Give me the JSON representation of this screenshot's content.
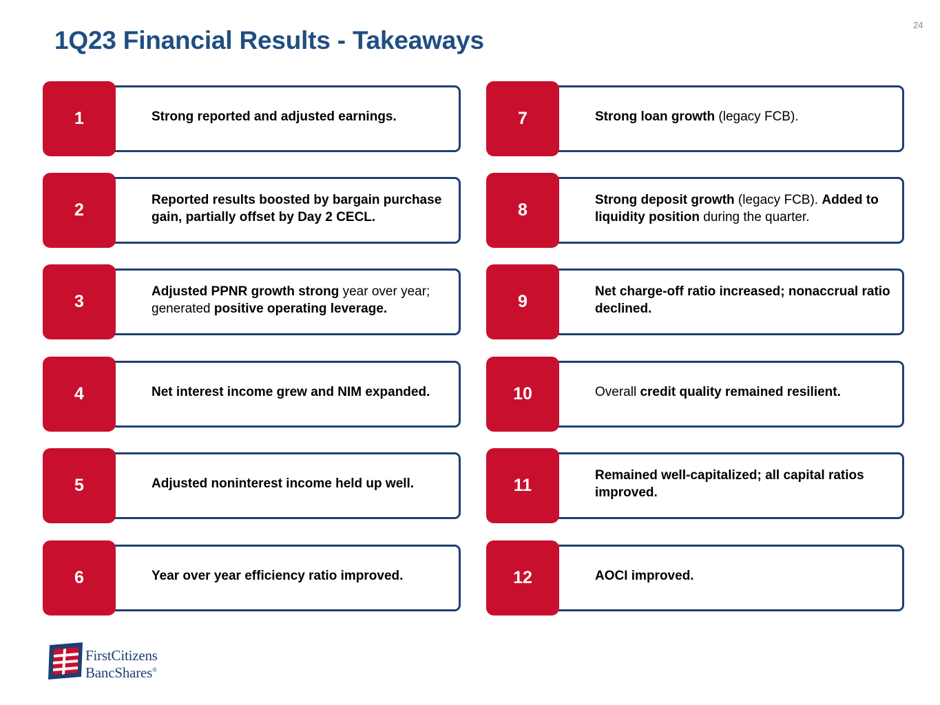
{
  "page_number": "24",
  "title": "1Q23 Financial Results - Takeaways",
  "colors": {
    "title": "#1f4e82",
    "number_badge": "#c8102e",
    "card_border": "#1f3f73"
  },
  "takeaways": [
    {
      "number": "1",
      "segments": [
        {
          "text": "Strong reported and adjusted earnings.",
          "bold": true
        }
      ]
    },
    {
      "number": "2",
      "segments": [
        {
          "text": "Reported results boosted by bargain purchase gain, partially offset by Day 2 CECL.",
          "bold": true
        }
      ]
    },
    {
      "number": "3",
      "segments": [
        {
          "text": "Adjusted PPNR growth strong",
          "bold": true
        },
        {
          "text": " year over year; generated ",
          "bold": false
        },
        {
          "text": "positive operating leverage.",
          "bold": true
        }
      ]
    },
    {
      "number": "4",
      "segments": [
        {
          "text": "Net interest income grew and NIM expanded.",
          "bold": true
        }
      ]
    },
    {
      "number": "5",
      "segments": [
        {
          "text": "Adjusted noninterest income held up well.",
          "bold": true
        }
      ]
    },
    {
      "number": "6",
      "segments": [
        {
          "text": "Year over year efficiency ratio improved.",
          "bold": true
        }
      ]
    },
    {
      "number": "7",
      "segments": [
        {
          "text": "Strong loan growth",
          "bold": true
        },
        {
          "text": " (legacy FCB).",
          "bold": false
        }
      ]
    },
    {
      "number": "8",
      "segments": [
        {
          "text": "Strong deposit growth",
          "bold": true
        },
        {
          "text": " (legacy FCB). ",
          "bold": false
        },
        {
          "text": "Added to liquidity position",
          "bold": true
        },
        {
          "text": " during the quarter.",
          "bold": false
        }
      ]
    },
    {
      "number": "9",
      "segments": [
        {
          "text": "Net charge-off ratio increased; nonaccrual ratio declined.",
          "bold": true
        }
      ]
    },
    {
      "number": "10",
      "segments": [
        {
          "text": "Overall ",
          "bold": false
        },
        {
          "text": "credit quality remained resilient.",
          "bold": true
        }
      ]
    },
    {
      "number": "11",
      "segments": [
        {
          "text": "Remained well-capitalized; all capital ratios improved.",
          "bold": true
        }
      ]
    },
    {
      "number": "12",
      "segments": [
        {
          "text": "AOCI improved.",
          "bold": true
        }
      ]
    }
  ],
  "logo": {
    "line1": "FirstCitizens",
    "line2": "BancShares",
    "mark": "®"
  }
}
